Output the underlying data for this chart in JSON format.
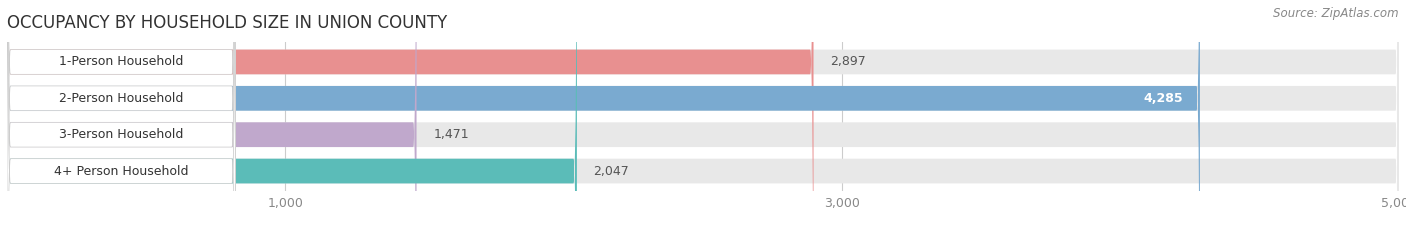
{
  "title": "OCCUPANCY BY HOUSEHOLD SIZE IN UNION COUNTY",
  "source": "Source: ZipAtlas.com",
  "categories": [
    "1-Person Household",
    "2-Person Household",
    "3-Person Household",
    "4+ Person Household"
  ],
  "values": [
    2897,
    4285,
    1471,
    2047
  ],
  "bar_colors": [
    "#E89090",
    "#7AAAD0",
    "#C0A8CC",
    "#5BBCB8"
  ],
  "xlim": [
    0,
    5000
  ],
  "xticks": [
    1000,
    3000,
    5000
  ],
  "xtick_labels": [
    "1,000",
    "3,000",
    "5,000"
  ],
  "background_color": "#ffffff",
  "bar_background_color": "#e8e8e8",
  "title_fontsize": 12,
  "source_fontsize": 8.5,
  "label_fontsize": 9,
  "value_fontsize": 9,
  "tick_fontsize": 9
}
